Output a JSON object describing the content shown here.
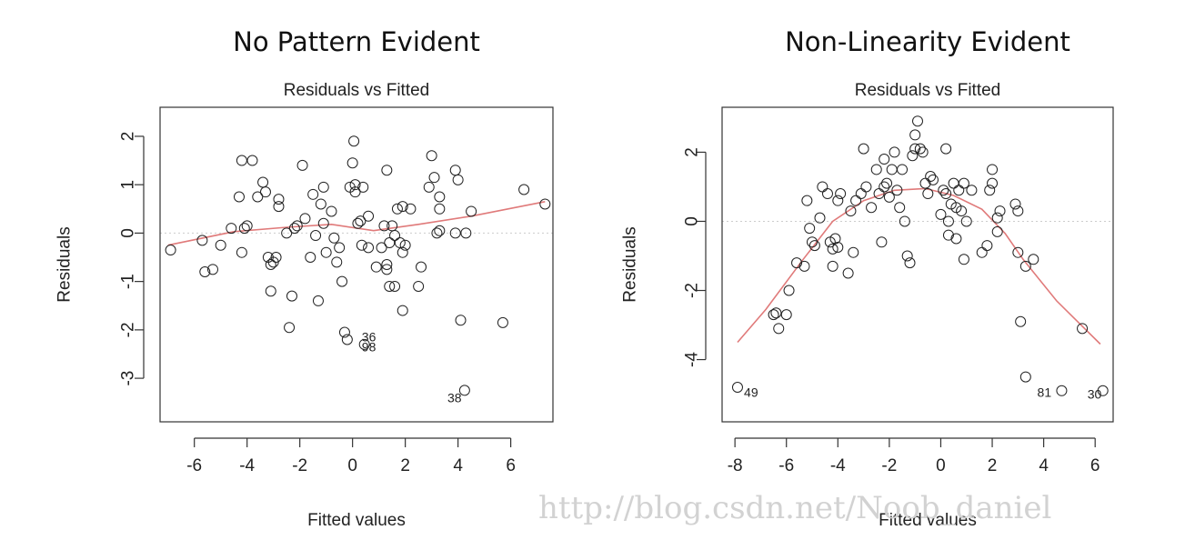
{
  "watermark": "http://blog.csdn.net/Noob_daniel",
  "chart_data": [
    {
      "type": "scatter",
      "heading": "No Pattern Evident",
      "title": "Residuals vs Fitted",
      "xlabel": "Fitted values",
      "ylabel": "Residuals",
      "xlim": [
        -7.3,
        7.6
      ],
      "ylim": [
        -3.9,
        2.6
      ],
      "xticks": [
        -6,
        -4,
        -2,
        0,
        2,
        4,
        6
      ],
      "yticks": [
        -3,
        -2,
        -1,
        0,
        1,
        2
      ],
      "reference_line_y": 0,
      "points": [
        [
          -6.9,
          -0.35
        ],
        [
          -5.7,
          -0.15
        ],
        [
          -5.6,
          -0.8
        ],
        [
          -5.3,
          -0.75
        ],
        [
          -5.0,
          -0.25
        ],
        [
          -4.6,
          0.1
        ],
        [
          -4.3,
          0.75
        ],
        [
          -4.2,
          -0.4
        ],
        [
          -4.1,
          0.1
        ],
        [
          -4.0,
          0.15
        ],
        [
          -4.2,
          1.5
        ],
        [
          -3.8,
          1.5
        ],
        [
          -3.6,
          0.75
        ],
        [
          -3.4,
          1.05
        ],
        [
          -3.3,
          0.85
        ],
        [
          -3.2,
          -0.5
        ],
        [
          -3.1,
          -0.65
        ],
        [
          -3.0,
          -0.6
        ],
        [
          -2.9,
          -0.5
        ],
        [
          -3.1,
          -1.2
        ],
        [
          -2.8,
          0.7
        ],
        [
          -2.8,
          0.55
        ],
        [
          -2.5,
          0.0
        ],
        [
          -2.3,
          -1.3
        ],
        [
          -2.4,
          -1.95
        ],
        [
          -2.2,
          0.1
        ],
        [
          -2.1,
          0.15
        ],
        [
          -1.9,
          1.4
        ],
        [
          -1.8,
          0.3
        ],
        [
          -1.6,
          -0.5
        ],
        [
          -1.5,
          0.8
        ],
        [
          -1.4,
          -0.05
        ],
        [
          -1.3,
          -1.4
        ],
        [
          -1.2,
          0.6
        ],
        [
          -1.1,
          0.95
        ],
        [
          -1.1,
          0.2
        ],
        [
          -1.0,
          -0.4
        ],
        [
          -0.8,
          0.45
        ],
        [
          -0.7,
          -0.1
        ],
        [
          -0.6,
          -0.6
        ],
        [
          -0.5,
          -0.3
        ],
        [
          -0.4,
          -1.0
        ],
        [
          -0.3,
          -2.05
        ],
        [
          -0.2,
          -2.2
        ],
        [
          -0.1,
          0.95
        ],
        [
          0.0,
          1.45
        ],
        [
          0.05,
          1.9
        ],
        [
          0.1,
          0.85
        ],
        [
          0.1,
          1.0
        ],
        [
          0.2,
          0.2
        ],
        [
          0.3,
          0.25
        ],
        [
          0.35,
          -0.25
        ],
        [
          0.4,
          0.95
        ],
        [
          0.45,
          -2.3
        ],
        [
          0.6,
          0.35
        ],
        [
          0.6,
          -0.3
        ],
        [
          0.9,
          -0.7
        ],
        [
          1.1,
          -0.3
        ],
        [
          1.2,
          0.15
        ],
        [
          1.3,
          1.3
        ],
        [
          1.3,
          -0.65
        ],
        [
          1.3,
          -0.75
        ],
        [
          1.4,
          -0.2
        ],
        [
          1.4,
          -1.1
        ],
        [
          1.5,
          0.15
        ],
        [
          1.6,
          -0.05
        ],
        [
          1.6,
          -1.1
        ],
        [
          1.7,
          0.5
        ],
        [
          1.8,
          -0.2
        ],
        [
          1.9,
          -0.4
        ],
        [
          1.9,
          -1.6
        ],
        [
          1.9,
          0.55
        ],
        [
          2.0,
          -0.25
        ],
        [
          2.2,
          0.5
        ],
        [
          2.6,
          -0.7
        ],
        [
          2.5,
          -1.1
        ],
        [
          2.9,
          0.95
        ],
        [
          3.0,
          1.6
        ],
        [
          3.1,
          1.15
        ],
        [
          3.2,
          0.0
        ],
        [
          3.3,
          0.75
        ],
        [
          3.3,
          0.5
        ],
        [
          3.3,
          0.05
        ],
        [
          3.9,
          1.3
        ],
        [
          3.9,
          0.0
        ],
        [
          4.0,
          1.1
        ],
        [
          4.1,
          -1.8
        ],
        [
          4.3,
          0.0
        ],
        [
          4.5,
          0.45
        ],
        [
          5.7,
          -1.85
        ],
        [
          6.5,
          0.9
        ],
        [
          7.3,
          0.6
        ],
        [
          4.25,
          -3.25
        ]
      ],
      "smooth": [
        [
          -7.0,
          -0.25
        ],
        [
          -4.5,
          0.03
        ],
        [
          -2.5,
          0.12
        ],
        [
          -0.8,
          0.18
        ],
        [
          0.8,
          0.05
        ],
        [
          2.5,
          0.18
        ],
        [
          4.5,
          0.35
        ],
        [
          7.3,
          0.65
        ]
      ],
      "point_labels": [
        {
          "text": "36",
          "x": 0.35,
          "y": -2.15
        },
        {
          "text": "98",
          "x": 0.35,
          "y": -2.35
        },
        {
          "text": "38",
          "x": 3.6,
          "y": -3.4
        }
      ]
    },
    {
      "type": "scatter",
      "heading": "Non-Linearity Evident",
      "title": "Residuals vs Fitted",
      "xlabel": "Fitted values",
      "ylabel": "Residuals",
      "xlim": [
        -8.5,
        6.7
      ],
      "ylim": [
        -5.8,
        3.3
      ],
      "xticks": [
        -8,
        -6,
        -4,
        -2,
        0,
        2,
        4,
        6
      ],
      "yticks": [
        -4,
        -2,
        0,
        2
      ],
      "reference_line_y": 0,
      "points": [
        [
          -7.9,
          -4.8
        ],
        [
          -6.5,
          -2.7
        ],
        [
          -6.4,
          -2.65
        ],
        [
          -6.3,
          -3.1
        ],
        [
          -6.0,
          -2.7
        ],
        [
          -5.9,
          -2.0
        ],
        [
          -5.6,
          -1.2
        ],
        [
          -5.3,
          -1.3
        ],
        [
          -5.2,
          0.6
        ],
        [
          -5.1,
          -0.2
        ],
        [
          -5.0,
          -0.6
        ],
        [
          -4.9,
          -0.7
        ],
        [
          -4.7,
          0.1
        ],
        [
          -4.6,
          1.0
        ],
        [
          -4.4,
          0.8
        ],
        [
          -4.3,
          -0.6
        ],
        [
          -4.2,
          -0.8
        ],
        [
          -4.2,
          -1.3
        ],
        [
          -4.1,
          -0.5
        ],
        [
          -4.0,
          -0.75
        ],
        [
          -4.0,
          0.6
        ],
        [
          -3.9,
          0.8
        ],
        [
          -3.6,
          -1.5
        ],
        [
          -3.5,
          0.3
        ],
        [
          -3.4,
          -0.9
        ],
        [
          -3.3,
          0.6
        ],
        [
          -3.1,
          0.8
        ],
        [
          -3.0,
          2.1
        ],
        [
          -2.9,
          1.0
        ],
        [
          -2.7,
          0.4
        ],
        [
          -2.5,
          1.5
        ],
        [
          -2.4,
          0.8
        ],
        [
          -2.3,
          -0.6
        ],
        [
          -2.2,
          1.0
        ],
        [
          -2.2,
          1.8
        ],
        [
          -2.1,
          1.1
        ],
        [
          -2.0,
          0.7
        ],
        [
          -1.9,
          1.5
        ],
        [
          -1.8,
          2.0
        ],
        [
          -1.7,
          0.9
        ],
        [
          -1.6,
          0.4
        ],
        [
          -1.5,
          1.5
        ],
        [
          -1.4,
          0.0
        ],
        [
          -1.3,
          -1.0
        ],
        [
          -1.2,
          -1.2
        ],
        [
          -1.1,
          1.9
        ],
        [
          -1.0,
          2.1
        ],
        [
          -1.0,
          2.5
        ],
        [
          -0.9,
          2.9
        ],
        [
          -0.8,
          2.1
        ],
        [
          -0.7,
          2.0
        ],
        [
          -0.6,
          1.1
        ],
        [
          -0.5,
          0.8
        ],
        [
          -0.4,
          1.3
        ],
        [
          -0.3,
          1.2
        ],
        [
          0.0,
          0.2
        ],
        [
          0.1,
          0.9
        ],
        [
          0.2,
          0.8
        ],
        [
          0.2,
          2.1
        ],
        [
          0.3,
          0.0
        ],
        [
          0.3,
          -0.4
        ],
        [
          0.4,
          0.5
        ],
        [
          0.5,
          1.1
        ],
        [
          0.6,
          0.4
        ],
        [
          0.6,
          -0.5
        ],
        [
          0.7,
          0.9
        ],
        [
          0.8,
          0.3
        ],
        [
          0.9,
          -1.1
        ],
        [
          0.9,
          1.1
        ],
        [
          1.0,
          0.0
        ],
        [
          1.2,
          0.9
        ],
        [
          1.6,
          -0.9
        ],
        [
          1.8,
          -0.7
        ],
        [
          1.9,
          0.9
        ],
        [
          2.0,
          1.1
        ],
        [
          2.0,
          1.5
        ],
        [
          2.2,
          0.1
        ],
        [
          2.2,
          -0.3
        ],
        [
          2.3,
          0.3
        ],
        [
          2.9,
          0.5
        ],
        [
          3.0,
          0.3
        ],
        [
          3.0,
          -0.9
        ],
        [
          3.1,
          -2.9
        ],
        [
          3.3,
          -1.3
        ],
        [
          3.3,
          -4.5
        ],
        [
          3.6,
          -1.1
        ],
        [
          4.7,
          -4.9
        ],
        [
          5.5,
          -3.1
        ],
        [
          6.3,
          -4.9
        ]
      ],
      "smooth": [
        [
          -7.9,
          -3.5
        ],
        [
          -6.8,
          -2.55
        ],
        [
          -5.4,
          -1.15
        ],
        [
          -4.2,
          0.0
        ],
        [
          -3.0,
          0.6
        ],
        [
          -1.8,
          0.9
        ],
        [
          -0.6,
          0.95
        ],
        [
          0.5,
          0.75
        ],
        [
          1.6,
          0.35
        ],
        [
          2.5,
          -0.35
        ],
        [
          3.2,
          -1.1
        ],
        [
          4.5,
          -2.3
        ],
        [
          6.2,
          -3.55
        ]
      ],
      "point_labels": [
        {
          "text": "49",
          "x": -7.65,
          "y": -4.95
        },
        {
          "text": "81",
          "x": 3.75,
          "y": -4.95
        },
        {
          "text": "30",
          "x": 5.7,
          "y": -5.0
        }
      ]
    }
  ]
}
